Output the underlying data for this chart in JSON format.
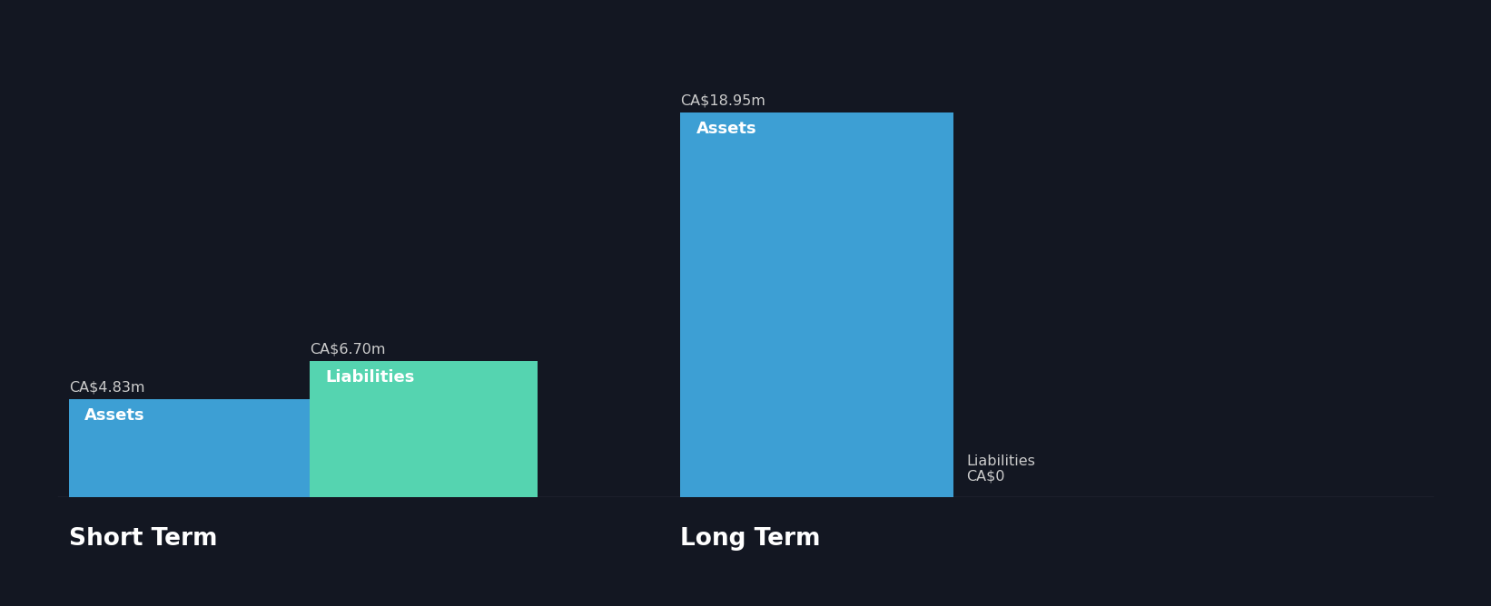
{
  "background_color": "#131722",
  "text_color": "#ffffff",
  "label_color_outside": "#cccccc",
  "short_term": {
    "assets_value": 4.83,
    "liabilities_value": 6.7,
    "assets_color": "#3d9fd4",
    "liabilities_color": "#55d4b0",
    "assets_label": "Assets",
    "liabilities_label": "Liabilities",
    "assets_value_label": "CA$4.83m",
    "liabilities_value_label": "CA$6.70m",
    "title": "Short Term"
  },
  "long_term": {
    "assets_value": 18.95,
    "liabilities_value": 0.0,
    "assets_color": "#3d9fd4",
    "liabilities_color": "#55d4b0",
    "assets_label": "Assets",
    "liabilities_label": "Liabilities",
    "assets_value_label": "CA$18.95m",
    "liabilities_value_label": "CA$0",
    "title": "Long Term"
  },
  "figsize": [
    16.42,
    6.68
  ],
  "dpi": 100
}
